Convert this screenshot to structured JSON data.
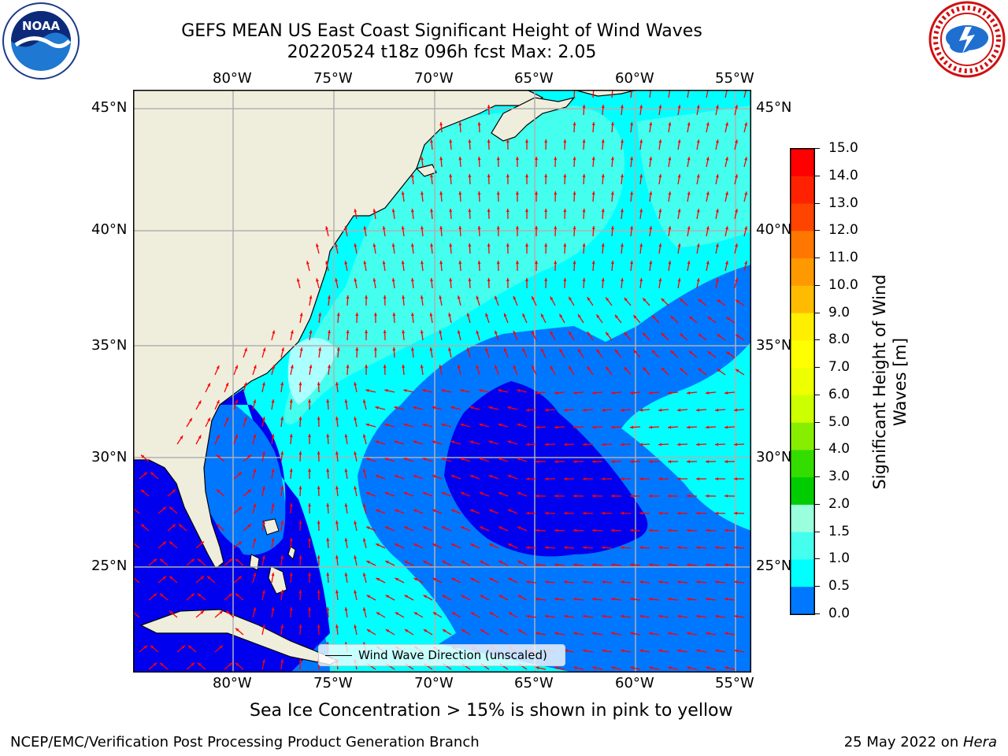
{
  "title_line1": "GEFS MEAN US East Coast Significant Height of Wind Waves",
  "title_line2": "20220524 t18z 096h fcst   Max: 2.05",
  "lon_labels": [
    "80°W",
    "75°W",
    "70°W",
    "65°W",
    "60°W",
    "55°W"
  ],
  "lat_labels": [
    "45°N",
    "40°N",
    "35°N",
    "30°N",
    "25°N"
  ],
  "legend_label": "Wind Wave Direction (unscaled)",
  "colorbar": {
    "title_line1": "Significant Height of Wind",
    "title_line2": "Waves [m]",
    "ticks": [
      "15.0",
      "14.0",
      "13.0",
      "12.0",
      "11.0",
      "10.0",
      "9.0",
      "8.0",
      "7.0",
      "6.0",
      "5.0",
      "4.0",
      "3.0",
      "2.0",
      "1.5",
      "1.0",
      "0.5",
      "0.0"
    ],
    "colors": [
      "#ff0000",
      "#ff2200",
      "#ff4400",
      "#ff7700",
      "#ff9900",
      "#ffbb00",
      "#ffee00",
      "#ffff00",
      "#eeff00",
      "#ccff00",
      "#88ee00",
      "#33dd00",
      "#00cc00",
      "#44ee77",
      "#99ffdd",
      "#44ffee",
      "#00ffff",
      "#0077ff",
      "#0000ff"
    ]
  },
  "caption": "Sea Ice Concentration > 15% is shown in pink to yellow",
  "footer_left": "NCEP/EMC/Verification Post Processing Product Generation Branch",
  "footer_right_date": "25 May 2022 on ",
  "footer_right_host": "Hera",
  "logos": {
    "left": "noara-logo",
    "right": "nws-logo"
  },
  "palette": {
    "land": "#efeedd",
    "deep": "#0000ee",
    "blue": "#0077ff",
    "cyan": "#00ffff",
    "light_cyan": "#44ffee",
    "pale": "#aaffff",
    "arrow": "#ff0000",
    "grid": "#b0b0b0"
  }
}
